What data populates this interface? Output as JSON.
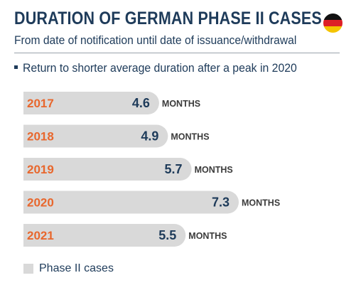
{
  "header": {
    "title": "DURATION OF GERMAN PHASE II CASES",
    "subtitle": "From date of notification until date of issuance/withdrawal",
    "bullet": "Return to shorter average duration after a peak in 2020"
  },
  "colors": {
    "bar": "#d9d9d9",
    "category_label": "#e8672d",
    "value_label": "#1e3b5a",
    "unit_label": "#3b3b3b",
    "title": "#1e3b5a"
  },
  "flag_icon": "germany-flag-icon",
  "chart_data": {
    "type": "bar",
    "orientation": "horizontal",
    "categories": [
      "2017",
      "2018",
      "2019",
      "2020",
      "2021"
    ],
    "series": [
      {
        "name": "Phase II cases",
        "values": [
          4.6,
          4.9,
          5.7,
          7.3,
          5.5
        ]
      }
    ],
    "value_labels": [
      "4.6",
      "4.9",
      "5.7",
      "7.3",
      "5.5"
    ],
    "unit": "MONTHS",
    "xlim": [
      0,
      7.3
    ],
    "grid": false,
    "legend_position": "bottom-left"
  },
  "legend": {
    "label": "Phase II cases"
  }
}
